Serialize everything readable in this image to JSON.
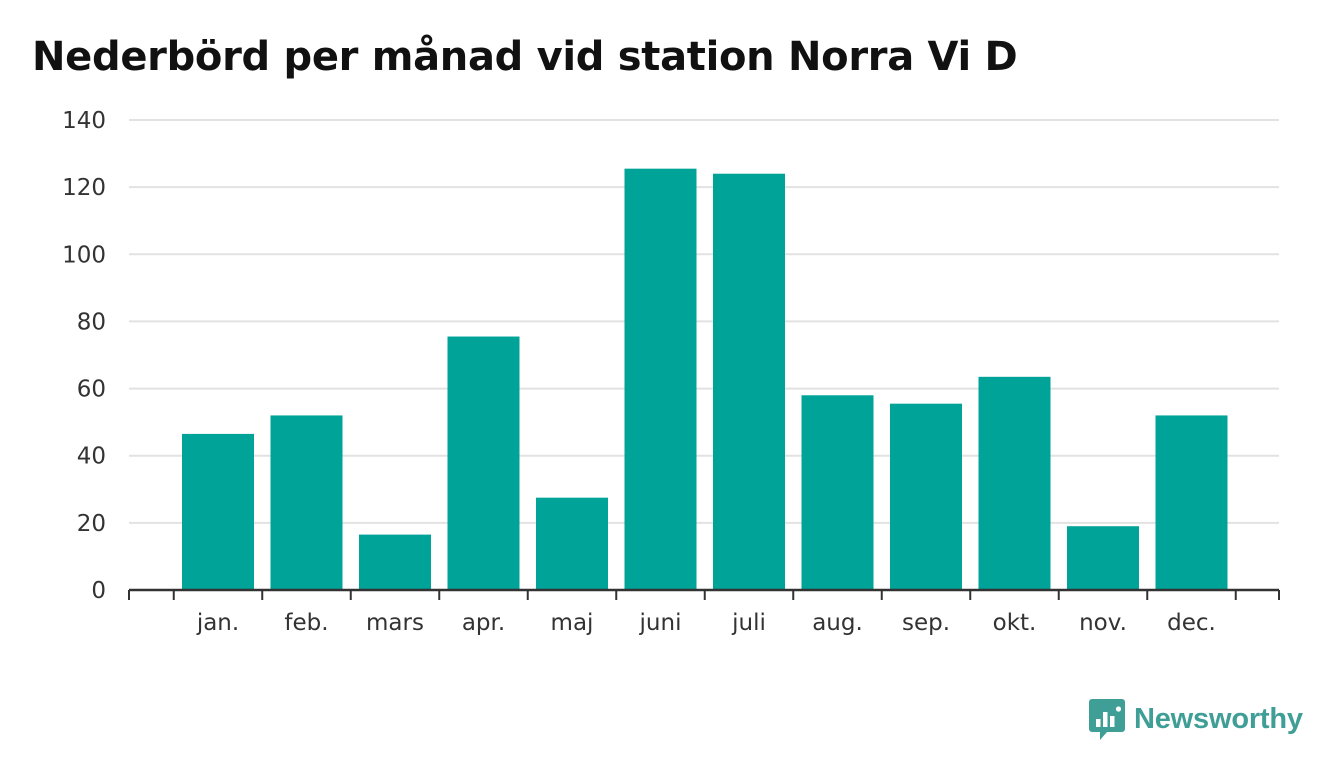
{
  "chart_data": {
    "type": "bar",
    "title": "Nederbörd per månad vid station Norra Vi D",
    "xlabel": "",
    "ylabel": "",
    "categories": [
      "jan.",
      "feb.",
      "mars",
      "apr.",
      "maj",
      "juni",
      "juli",
      "aug.",
      "sep.",
      "okt.",
      "nov.",
      "dec."
    ],
    "values": [
      46.5,
      52,
      16.5,
      75.5,
      27.5,
      125.5,
      124,
      58,
      55.5,
      63.5,
      19,
      52
    ],
    "ylim": [
      0,
      140
    ],
    "yticks": [
      0,
      20,
      40,
      60,
      80,
      100,
      120,
      140
    ],
    "grid": true,
    "bar_color": "#00a398",
    "grid_color": "#e2e2e2",
    "axis_color": "#333333"
  },
  "brand": {
    "name": "Newsworthy",
    "icon": "newsworthy-logo-icon",
    "color": "#3f9e96"
  }
}
